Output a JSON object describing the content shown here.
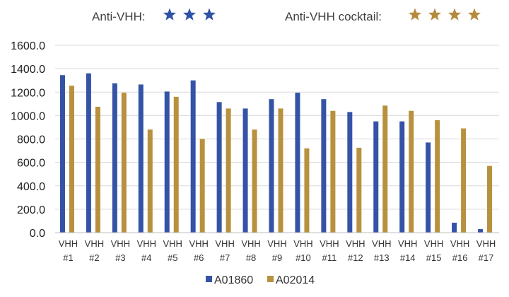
{
  "header": {
    "left_label": "Anti-VHH:",
    "left_rating": 3,
    "right_label": "Anti-VHH cocktail:",
    "right_rating": 4,
    "left_star_color": "#2E52A6",
    "right_star_color": "#B58A3C"
  },
  "chart_data": {
    "type": "bar",
    "categories": [
      [
        "VHH",
        "#1"
      ],
      [
        "VHH",
        "#2"
      ],
      [
        "VHH",
        "#3"
      ],
      [
        "VHH",
        "#4"
      ],
      [
        "VHH",
        "#5"
      ],
      [
        "VHH",
        "#6"
      ],
      [
        "VHH",
        "#7"
      ],
      [
        "VHH",
        "#8"
      ],
      [
        "VHH",
        "#9"
      ],
      [
        "VHH",
        "#10"
      ],
      [
        "VHH",
        "#11"
      ],
      [
        "VHH",
        "#12"
      ],
      [
        "VHH",
        "#13"
      ],
      [
        "VHH",
        "#14"
      ],
      [
        "VHH",
        "#15"
      ],
      [
        "VHH",
        "#16"
      ],
      [
        "VHH",
        "#17"
      ]
    ],
    "series": [
      {
        "name": "A01860",
        "color": "#3553A6",
        "values": [
          1345,
          1360,
          1275,
          1265,
          1205,
          1300,
          1115,
          1060,
          1140,
          1195,
          1140,
          1030,
          950,
          950,
          770,
          85,
          30
        ]
      },
      {
        "name": "A02014",
        "color": "#B8913F",
        "values": [
          1255,
          1075,
          1195,
          880,
          1160,
          800,
          1060,
          880,
          1060,
          720,
          1040,
          725,
          1085,
          1040,
          960,
          890,
          570
        ]
      }
    ],
    "yticks": [
      "0.0",
      "200.0",
      "400.0",
      "600.0",
      "800.0",
      "1000.0",
      "1200.0",
      "1400.0",
      "1600.0"
    ],
    "ylim": [
      0,
      1600
    ],
    "grid": true,
    "legend_position": "bottom"
  }
}
